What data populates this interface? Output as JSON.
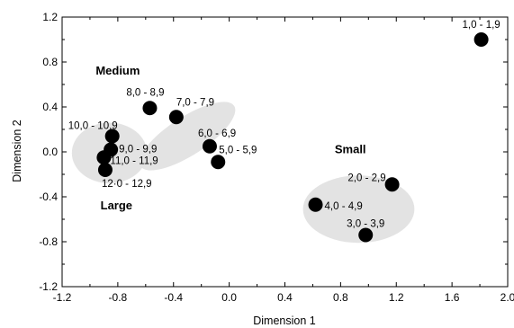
{
  "chart_data": {
    "type": "scatter",
    "xlabel": "Dimension 1",
    "ylabel": "Dimension 2",
    "xlim": [
      -1.2,
      2.0
    ],
    "ylim": [
      -1.2,
      1.2
    ],
    "xticks": [
      "-1.2",
      "-0.8",
      "-0.4",
      "0.0",
      "0.4",
      "0.8",
      "1.2",
      "1.6",
      "2.0"
    ],
    "yticks": [
      "1.2",
      "0.8",
      "0.4",
      "0.0",
      "-0.4",
      "-0.8",
      "-1.2"
    ],
    "grid": false,
    "points": [
      {
        "label": "1,0 - 1,9",
        "x": 1.81,
        "y": 1.0
      },
      {
        "label": "2,0 - 2,9",
        "x": 1.17,
        "y": -0.29
      },
      {
        "label": "3,0 - 3,9",
        "x": 0.98,
        "y": -0.74
      },
      {
        "label": "4,0 - 4,9",
        "x": 0.62,
        "y": -0.47
      },
      {
        "label": "5,0 - 5,9",
        "x": -0.08,
        "y": -0.09
      },
      {
        "label": "6,0 - 6,9",
        "x": -0.14,
        "y": 0.05
      },
      {
        "label": "7,0 - 7,9",
        "x": -0.38,
        "y": 0.31
      },
      {
        "label": "8,0 - 8,9",
        "x": -0.57,
        "y": 0.39
      },
      {
        "label": "9,0 - 9,9",
        "x": -0.85,
        "y": 0.02
      },
      {
        "label": "10,0 - 10,9",
        "x": -0.84,
        "y": 0.14
      },
      {
        "label": "11,0 - 11,9",
        "x": -0.9,
        "y": -0.05
      },
      {
        "label": "12·0 - 12,9",
        "x": -0.89,
        "y": -0.16
      }
    ],
    "groups": [
      {
        "label": "Large",
        "cx": -0.86,
        "cy": -0.01,
        "rx": 0.27,
        "ry": 0.27,
        "angle": 0
      },
      {
        "label": "Medium",
        "cx": -0.3,
        "cy": 0.14,
        "rx": 0.4,
        "ry": 0.17,
        "angle": -33
      },
      {
        "label": "Small",
        "cx": 0.93,
        "cy": -0.51,
        "rx": 0.4,
        "ry": 0.3,
        "angle": 0
      }
    ]
  }
}
